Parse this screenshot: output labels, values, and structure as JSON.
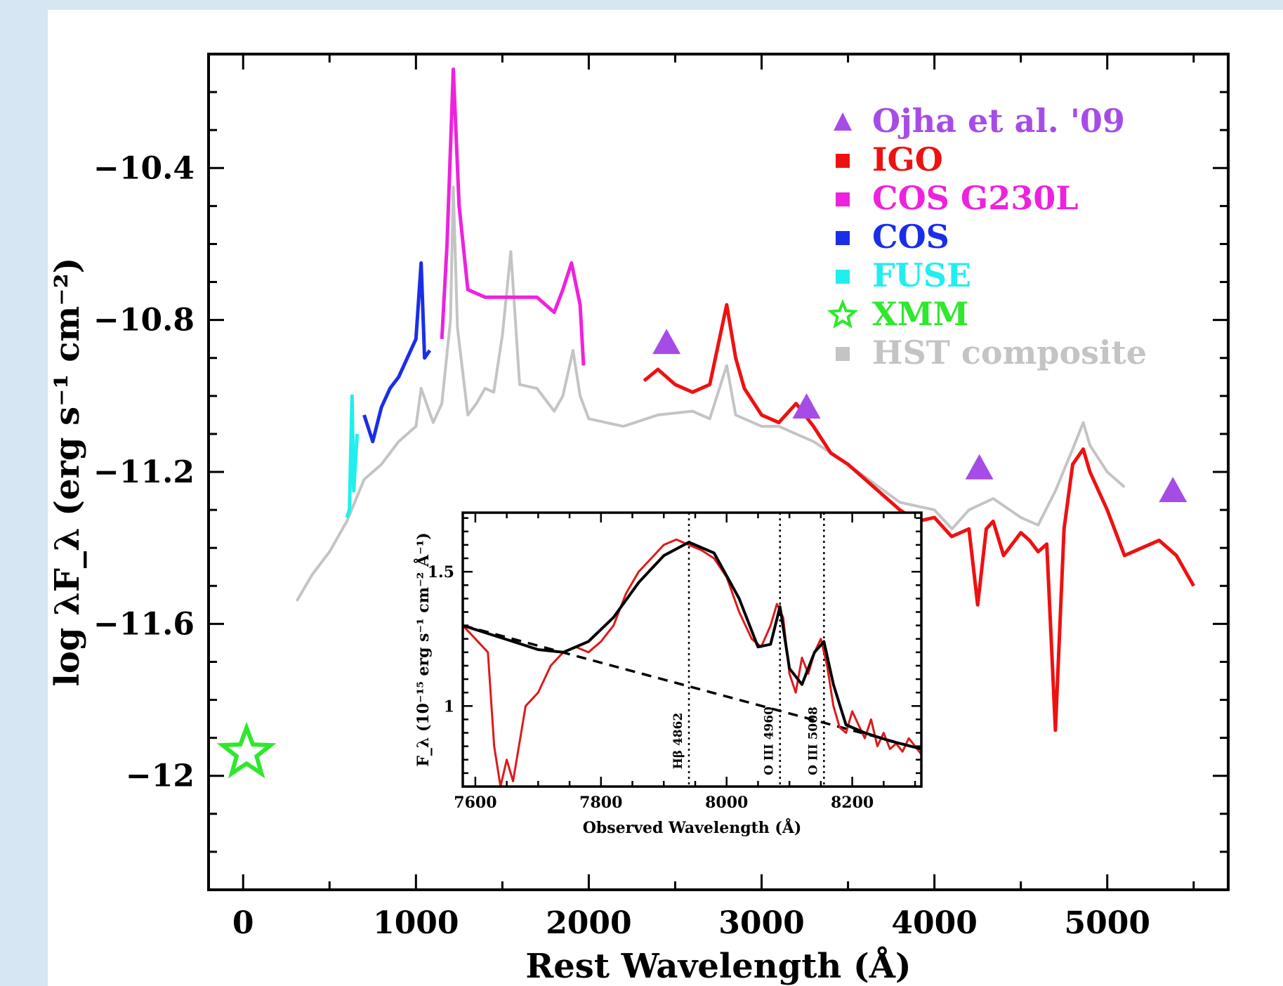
{
  "chart_data": {
    "type": "line",
    "xlabel": "Rest Wavelength (Å)",
    "ylabel": "log λF_λ (erg s⁻¹ cm⁻²)",
    "xlim": [
      -200,
      5700
    ],
    "ylim": [
      -12.3,
      -10.1
    ],
    "xticks": [
      "0",
      "1000",
      "2000",
      "3000",
      "4000",
      "5000"
    ],
    "yticks": [
      "-10.4",
      "-10.8",
      "-11.2",
      "-11.6",
      "-12"
    ],
    "legend": [
      {
        "label": "Ojha et al. '09",
        "marker": "triangle",
        "color": "#a64ce6"
      },
      {
        "label": "IGO",
        "marker": "square",
        "color": "#ee1111"
      },
      {
        "label": "COS G230L",
        "marker": "square",
        "color": "#ee22dd"
      },
      {
        "label": "COS",
        "marker": "square",
        "color": "#1a2ee8"
      },
      {
        "label": "FUSE",
        "marker": "square",
        "color": "#22eeee"
      },
      {
        "label": "XMM",
        "marker": "star",
        "color": "#2ee82e"
      },
      {
        "label": "HST composite",
        "marker": "square",
        "color": "#c4c4c4"
      }
    ],
    "legend_position": "top-right",
    "series": [
      {
        "name": "HST composite",
        "color": "#c4c4c4",
        "x": [
          310,
          400,
          500,
          600,
          700,
          800,
          900,
          1000,
          1030,
          1100,
          1150,
          1200,
          1216,
          1240,
          1300,
          1350,
          1400,
          1450,
          1500,
          1549,
          1600,
          1700,
          1800,
          1850,
          1909,
          1950,
          2000,
          2200,
          2400,
          2600,
          2700,
          2798,
          2850,
          2900,
          3000,
          3100,
          3200,
          3300,
          3500,
          3800,
          4000,
          4102,
          4200,
          4340,
          4500,
          4600,
          4700,
          4800,
          4861,
          4900,
          5000,
          5100
        ],
        "y": [
          -11.54,
          -11.47,
          -11.41,
          -11.33,
          -11.22,
          -11.18,
          -11.12,
          -11.08,
          -10.98,
          -11.07,
          -11.02,
          -10.8,
          -10.45,
          -10.82,
          -11.05,
          -11.02,
          -10.98,
          -10.99,
          -10.84,
          -10.62,
          -10.97,
          -10.98,
          -11.04,
          -11.0,
          -10.88,
          -11.0,
          -11.06,
          -11.08,
          -11.05,
          -11.04,
          -11.06,
          -10.92,
          -11.05,
          -11.06,
          -11.08,
          -11.08,
          -11.1,
          -11.12,
          -11.18,
          -11.28,
          -11.3,
          -11.35,
          -11.3,
          -11.27,
          -11.32,
          -11.34,
          -11.25,
          -11.14,
          -11.07,
          -11.13,
          -11.2,
          -11.24
        ]
      },
      {
        "name": "IGO",
        "color": "#ee1111",
        "x": [
          2320,
          2400,
          2500,
          2600,
          2700,
          2798,
          2850,
          2900,
          3000,
          3100,
          3200,
          3300,
          3400,
          3500,
          3600,
          3700,
          3800,
          3900,
          4000,
          4100,
          4200,
          4250,
          4300,
          4340,
          4400,
          4500,
          4550,
          4600,
          4650,
          4700,
          4750,
          4800,
          4861,
          4900,
          5000,
          5100,
          5200,
          5300,
          5400,
          5500
        ],
        "y": [
          -10.96,
          -10.93,
          -10.97,
          -10.99,
          -10.97,
          -10.76,
          -10.9,
          -10.98,
          -11.05,
          -11.07,
          -11.02,
          -11.08,
          -11.15,
          -11.18,
          -11.22,
          -11.26,
          -11.3,
          -11.33,
          -11.32,
          -11.37,
          -11.35,
          -11.55,
          -11.35,
          -11.33,
          -11.42,
          -11.36,
          -11.38,
          -11.41,
          -11.39,
          -11.88,
          -11.35,
          -11.18,
          -11.14,
          -11.2,
          -11.3,
          -11.42,
          -11.4,
          -11.38,
          -11.42,
          -11.5
        ]
      },
      {
        "name": "COS G230L",
        "color": "#ee22dd",
        "x": [
          1150,
          1180,
          1216,
          1250,
          1300,
          1400,
          1500,
          1600,
          1700,
          1750,
          1800,
          1850,
          1900,
          1950,
          1970
        ],
        "y": [
          -10.85,
          -10.6,
          -10.14,
          -10.5,
          -10.72,
          -10.74,
          -10.74,
          -10.74,
          -10.74,
          -10.76,
          -10.78,
          -10.72,
          -10.65,
          -10.76,
          -10.92
        ]
      },
      {
        "name": "COS",
        "color": "#1a2ee8",
        "x": [
          700,
          750,
          800,
          850,
          900,
          950,
          1000,
          1030,
          1050,
          1080
        ],
        "y": [
          -11.05,
          -11.12,
          -11.03,
          -10.98,
          -10.95,
          -10.9,
          -10.85,
          -10.65,
          -10.9,
          -10.88
        ]
      },
      {
        "name": "FUSE",
        "color": "#22eeee",
        "x": [
          600,
          615,
          630,
          640,
          660
        ],
        "y": [
          -11.32,
          -11.3,
          -11.0,
          -11.25,
          -11.1
        ]
      }
    ],
    "points": [
      {
        "name": "Ojha et al. '09",
        "marker": "triangle",
        "x": [
          2450,
          3260,
          4260,
          5380
        ],
        "y": [
          -10.86,
          -11.03,
          -11.19,
          -11.25
        ]
      },
      {
        "name": "XMM",
        "marker": "star",
        "x": [
          20
        ],
        "y": [
          -11.94
        ]
      }
    ],
    "inset": {
      "type": "line",
      "xlabel": "Observed Wavelength (Å)",
      "ylabel": "F_λ (10⁻¹⁵ erg s⁻¹ cm⁻² Å⁻¹)",
      "xlim": [
        7580,
        8310
      ],
      "ylim": [
        0.7,
        1.72
      ],
      "xticks": [
        "7600",
        "7800",
        "8000",
        "8200"
      ],
      "yticks": [
        "1.5",
        "1"
      ],
      "annotations": [
        {
          "text": "Hβ 4862",
          "x": 7940
        },
        {
          "text": "O III 4960",
          "x": 8085
        },
        {
          "text": "O III 5008",
          "x": 8155
        }
      ],
      "series": [
        {
          "name": "data",
          "color": "#dd1a1a",
          "x": [
            7580,
            7600,
            7620,
            7630,
            7640,
            7650,
            7660,
            7680,
            7700,
            7720,
            7740,
            7760,
            7780,
            7800,
            7820,
            7840,
            7860,
            7880,
            7900,
            7920,
            7940,
            7960,
            7980,
            8000,
            8020,
            8040,
            8055,
            8070,
            8080,
            8090,
            8100,
            8110,
            8120,
            8130,
            8140,
            8150,
            8160,
            8170,
            8180,
            8190,
            8200,
            8210,
            8220,
            8230,
            8240,
            8250,
            8260,
            8270,
            8280,
            8290,
            8300,
            8310
          ],
          "y": [
            1.3,
            1.25,
            1.2,
            0.85,
            0.7,
            0.8,
            0.72,
            1.0,
            1.05,
            1.15,
            1.2,
            1.22,
            1.2,
            1.24,
            1.3,
            1.42,
            1.5,
            1.55,
            1.6,
            1.62,
            1.6,
            1.58,
            1.55,
            1.48,
            1.35,
            1.25,
            1.22,
            1.3,
            1.38,
            1.33,
            1.12,
            1.05,
            1.18,
            1.12,
            1.2,
            1.25,
            1.15,
            1.0,
            0.92,
            0.9,
            0.98,
            0.93,
            0.88,
            0.95,
            0.85,
            0.9,
            0.84,
            0.86,
            0.83,
            0.88,
            0.85,
            0.82
          ]
        },
        {
          "name": "fit",
          "color": "#000000",
          "x": [
            7580,
            7620,
            7660,
            7700,
            7740,
            7780,
            7820,
            7860,
            7900,
            7940,
            7980,
            8020,
            8050,
            8070,
            8085,
            8100,
            8120,
            8140,
            8155,
            8170,
            8190,
            8220,
            8260,
            8310
          ],
          "y": [
            1.3,
            1.27,
            1.24,
            1.21,
            1.2,
            1.24,
            1.33,
            1.46,
            1.56,
            1.61,
            1.57,
            1.4,
            1.22,
            1.23,
            1.37,
            1.14,
            1.08,
            1.2,
            1.24,
            1.08,
            0.93,
            0.9,
            0.87,
            0.84
          ]
        }
      ],
      "continuum": {
        "x": [
          7580,
          8310
        ],
        "y": [
          1.3,
          0.84
        ]
      }
    }
  }
}
